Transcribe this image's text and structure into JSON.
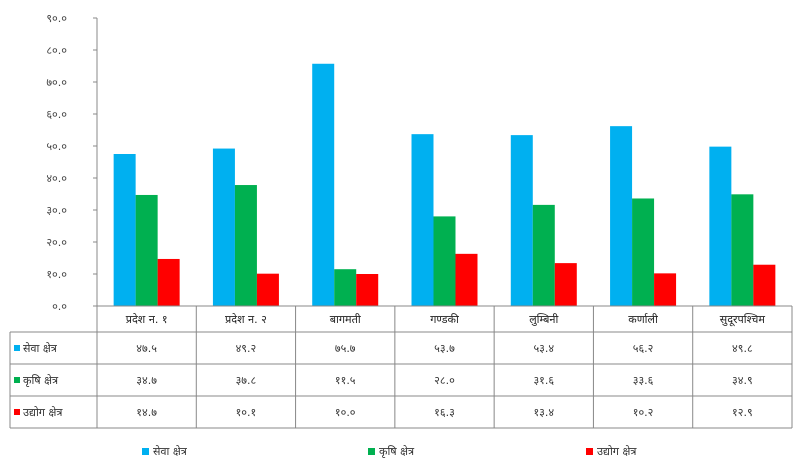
{
  "chart_data": {
    "type": "bar",
    "categories": [
      "प्रदेश न. १",
      "प्रदेश न. २",
      "बागमती",
      "गण्डकी",
      "लुम्बिनी",
      "कर्णाली",
      "सुदूरपश्चिम"
    ],
    "series": [
      {
        "name": "सेवा क्षेत्र",
        "color": "#00b0f0",
        "values": [
          47.5,
          49.2,
          75.7,
          53.7,
          53.4,
          56.2,
          49.8
        ],
        "labels": [
          "४७.५",
          "४९.२",
          "७५.७",
          "५३.७",
          "५३.४",
          "५६.२",
          "४९.८"
        ]
      },
      {
        "name": "कृषि क्षेत्र",
        "color": "#00b050",
        "values": [
          34.7,
          37.8,
          11.5,
          28.0,
          31.6,
          33.6,
          34.9
        ],
        "labels": [
          "३४.७",
          "३७.८",
          "११.५",
          "२८.०",
          "३१.६",
          "३३.६",
          "३४.९"
        ]
      },
      {
        "name": "उद्योग क्षेत्र",
        "color": "#ff0000",
        "values": [
          14.7,
          10.1,
          10.0,
          16.3,
          13.4,
          10.2,
          12.9
        ],
        "labels": [
          "१४.७",
          "१०.१",
          "१०.०",
          "१६.३",
          "१३.४",
          "१०.२",
          "१२.९"
        ]
      }
    ],
    "ylim": [
      0,
      90
    ],
    "yticks": [
      0,
      10,
      20,
      30,
      40,
      50,
      60,
      70,
      80,
      90
    ],
    "ytick_labels": [
      "०.०",
      "१०.०",
      "२०.०",
      "३०.०",
      "४०.०",
      "५०.०",
      "६०.०",
      "७०.०",
      "८०.०",
      "९०.०"
    ],
    "legend_position": "bottom",
    "grid": false
  }
}
